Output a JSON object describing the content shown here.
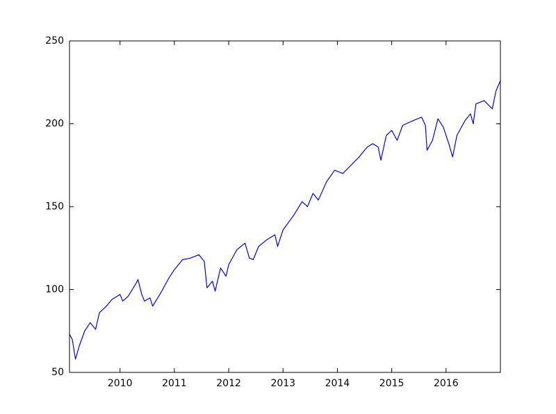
{
  "chart_data": {
    "type": "line",
    "x": [
      2009.07,
      2009.12,
      2009.18,
      2009.25,
      2009.35,
      2009.45,
      2009.55,
      2009.62,
      2009.75,
      2009.85,
      2010.0,
      2010.05,
      2010.15,
      2010.3,
      2010.33,
      2010.4,
      2010.45,
      2010.55,
      2010.6,
      2010.75,
      2010.9,
      2011.0,
      2011.15,
      2011.3,
      2011.45,
      2011.55,
      2011.6,
      2011.7,
      2011.75,
      2011.85,
      2011.95,
      2012.0,
      2012.15,
      2012.3,
      2012.38,
      2012.45,
      2012.55,
      2012.7,
      2012.85,
      2012.9,
      2013.0,
      2013.2,
      2013.35,
      2013.45,
      2013.55,
      2013.65,
      2013.8,
      2013.95,
      2014.1,
      2014.25,
      2014.4,
      2014.55,
      2014.65,
      2014.75,
      2014.8,
      2014.9,
      2015.0,
      2015.1,
      2015.2,
      2015.4,
      2015.55,
      2015.62,
      2015.65,
      2015.75,
      2015.85,
      2015.95,
      2016.05,
      2016.12,
      2016.2,
      2016.35,
      2016.45,
      2016.5,
      2016.55,
      2016.7,
      2016.85,
      2016.92,
      2017.0
    ],
    "series": [
      {
        "color": "#0000ff",
        "values": [
          73,
          70,
          58,
          66,
          75,
          80,
          76,
          86,
          90,
          94,
          97,
          93,
          96,
          104,
          106,
          97,
          93,
          95,
          90,
          98,
          107,
          112,
          118,
          119,
          121,
          117,
          101,
          105,
          99,
          113,
          108,
          115,
          124,
          128,
          119,
          118,
          126,
          130,
          133,
          126,
          136,
          145,
          153,
          150,
          158,
          154,
          165,
          172,
          170,
          175,
          180,
          186,
          188,
          186,
          178,
          193,
          196,
          190,
          199,
          202,
          204,
          199,
          184,
          190,
          203,
          198,
          188,
          180,
          193,
          202,
          206,
          200,
          212,
          214,
          209,
          220,
          226
        ]
      }
    ],
    "xlim": [
      2009.07,
      2017.0
    ],
    "xticks": [
      2010,
      2011,
      2012,
      2013,
      2014,
      2015,
      2016
    ],
    "ylim": [
      50,
      250
    ],
    "yticks": [
      50,
      100,
      150,
      200,
      250
    ]
  }
}
